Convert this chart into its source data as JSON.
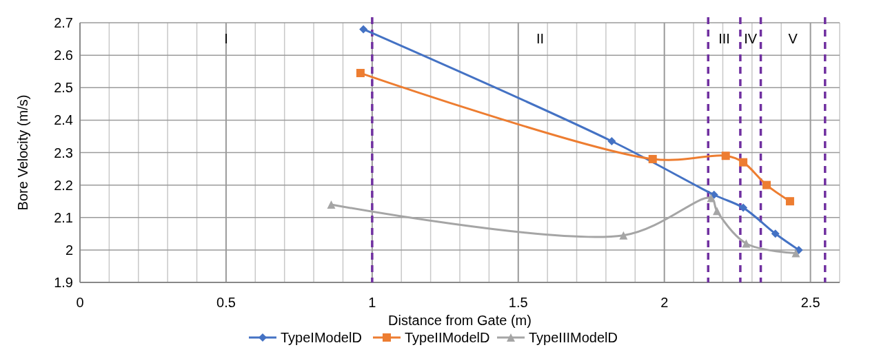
{
  "chart_data": {
    "type": "line",
    "xlabel": "Distance from Gate (m)",
    "ylabel": "Bore Velocity (m/s)",
    "xlim": [
      0,
      2.6
    ],
    "ylim": [
      1.9,
      2.7
    ],
    "xticks": [
      0,
      {
        "value": 0.1,
        "label": null
      },
      {
        "value": 0.2,
        "label": null
      },
      {
        "value": 0.3,
        "label": null
      },
      {
        "value": 0.4,
        "label": null
      },
      0.5,
      {
        "value": 0.6,
        "label": null
      },
      {
        "value": 0.7,
        "label": null
      },
      {
        "value": 0.8,
        "label": null
      },
      {
        "value": 0.9,
        "label": null
      },
      1,
      {
        "value": 1.1,
        "label": null
      },
      {
        "value": 1.2,
        "label": null
      },
      {
        "value": 1.3,
        "label": null
      },
      {
        "value": 1.4,
        "label": null
      },
      1.5,
      {
        "value": 1.6,
        "label": null
      },
      {
        "value": 1.7,
        "label": null
      },
      {
        "value": 1.8,
        "label": null
      },
      {
        "value": 1.9,
        "label": null
      },
      2,
      {
        "value": 2.1,
        "label": null
      },
      {
        "value": 2.2,
        "label": null
      },
      {
        "value": 2.3,
        "label": null
      },
      {
        "value": 2.4,
        "label": null
      },
      2.5,
      {
        "value": 2.6,
        "label": null
      }
    ],
    "yticks": [
      1.9,
      2,
      2.1,
      2.2,
      2.3,
      2.4,
      2.5,
      2.6,
      2.7
    ],
    "grid": true,
    "legend": "bottom",
    "series": [
      {
        "name": "TypeIModelD",
        "color": "#4472c4",
        "marker": "diamond",
        "x": [
          0.97,
          1.82,
          2.17,
          2.27,
          2.38,
          2.46
        ],
        "values": [
          2.68,
          2.335,
          2.17,
          2.13,
          2.05,
          2.0
        ]
      },
      {
        "name": "TypeIIModelD",
        "color": "#ed7d31",
        "marker": "square",
        "x": [
          0.96,
          1.96,
          2.21,
          2.27,
          2.35,
          2.43
        ],
        "values": [
          2.545,
          2.28,
          2.29,
          2.27,
          2.2,
          2.15
        ]
      },
      {
        "name": "TypeIIIModelD",
        "color": "#a5a5a5",
        "marker": "triangle",
        "x": [
          0.86,
          1.86,
          2.16,
          2.18,
          2.28,
          2.45
        ],
        "values": [
          2.14,
          2.045,
          2.16,
          2.12,
          2.02,
          1.99
        ]
      }
    ],
    "ref_lines": [
      {
        "axis": "x",
        "value": 1.0,
        "color": "#7030a0",
        "line_style": "dashed"
      },
      {
        "axis": "x",
        "value": 2.15,
        "color": "#7030a0",
        "line_style": "dashed"
      },
      {
        "axis": "x",
        "value": 2.26,
        "color": "#7030a0",
        "line_style": "dashed"
      },
      {
        "axis": "x",
        "value": 2.33,
        "color": "#7030a0",
        "line_style": "dashed"
      },
      {
        "axis": "x",
        "value": 2.55,
        "color": "#7030a0",
        "line_style": "dashed"
      }
    ],
    "annotations": [
      "I",
      "II",
      "III",
      "IV",
      "V"
    ]
  }
}
